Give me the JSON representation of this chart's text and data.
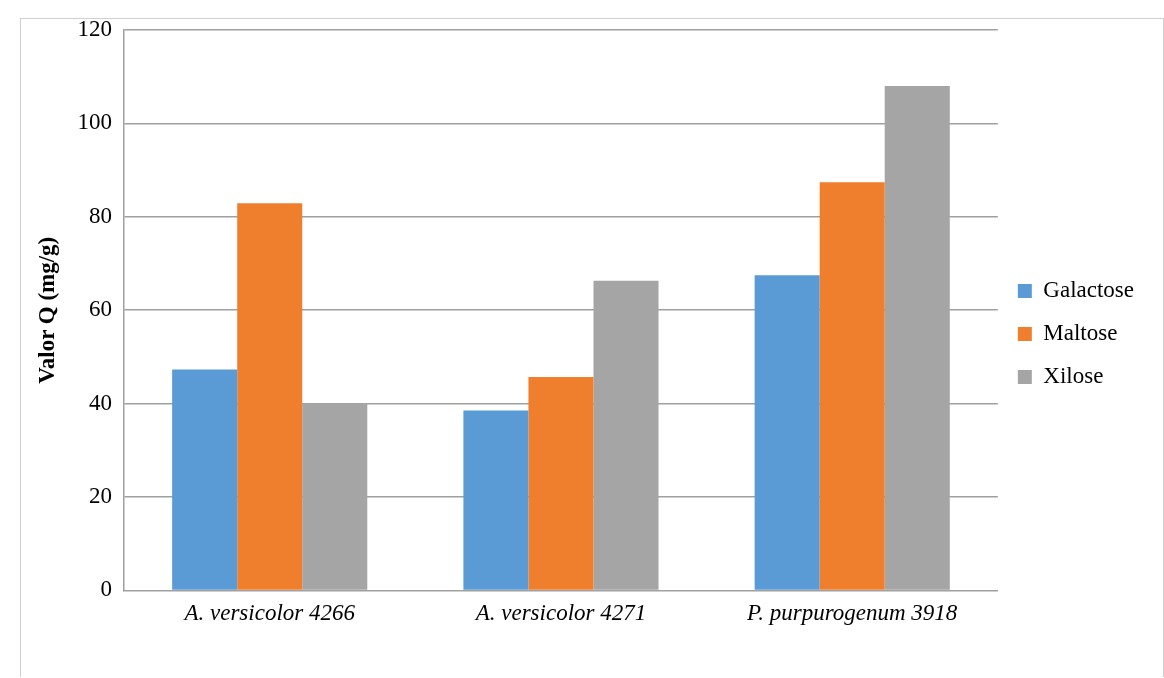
{
  "chart_data": {
    "type": "bar",
    "ylabel": "Valor Q (mg/g)",
    "categories": [
      "A. versicolor 4266",
      "A. versicolor 4271",
      "P. purpurogenum 3918"
    ],
    "series": [
      {
        "name": "Galactose",
        "color": "#5b9bd5",
        "values": [
          47.3,
          38.5,
          67.5
        ]
      },
      {
        "name": "Maltose",
        "color": "#f07f2d",
        "values": [
          82.9,
          45.7,
          87.4
        ]
      },
      {
        "name": "Xilose",
        "color": "#a5a5a5",
        "values": [
          40.1,
          66.3,
          108
        ]
      }
    ],
    "ylim": [
      0,
      120
    ],
    "yticks": [
      0,
      20,
      40,
      60,
      80,
      100,
      120
    ],
    "grid": "y",
    "legend": "right"
  }
}
